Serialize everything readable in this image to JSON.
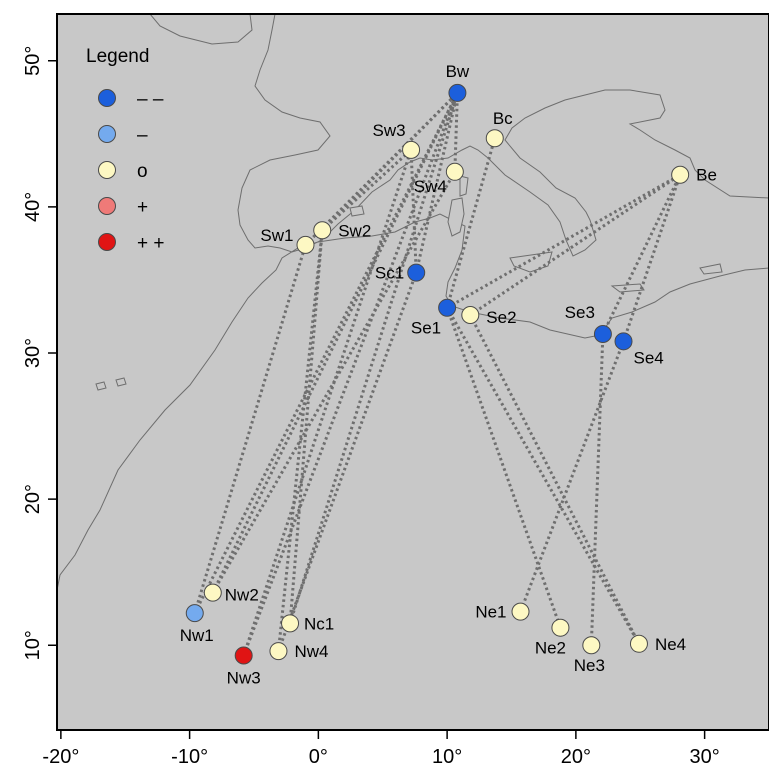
{
  "map": {
    "land_color": "#c8c8c8",
    "sea_color": "#ffffff",
    "coast_color": "#6e6e6e",
    "link_color": "#6f6f6f"
  },
  "axes": {
    "x_ticks": [
      {
        "value": -20,
        "label": "-20°"
      },
      {
        "value": -10,
        "label": "-10°"
      },
      {
        "value": 0,
        "label": "0°"
      },
      {
        "value": 10,
        "label": "10°"
      },
      {
        "value": 20,
        "label": "20°"
      },
      {
        "value": 30,
        "label": "30°"
      }
    ],
    "y_ticks": [
      {
        "value": 10,
        "label": "10°"
      },
      {
        "value": 20,
        "label": "20°"
      },
      {
        "value": 30,
        "label": "30°"
      },
      {
        "value": 40,
        "label": "40°"
      },
      {
        "value": 50,
        "label": "50°"
      }
    ],
    "x_range": [
      -20.3,
      35
    ],
    "y_range": [
      4.2,
      53.2
    ]
  },
  "legend": {
    "title": "Legend",
    "items": [
      {
        "label": "– –",
        "color": "#1c5fdc"
      },
      {
        "label": "–",
        "color": "#74aaee"
      },
      {
        "label": "o",
        "color": "#fdf8c3"
      },
      {
        "label": "+",
        "color": "#ef7a78"
      },
      {
        "label": "+ +",
        "color": "#e01414"
      }
    ]
  },
  "sites": [
    {
      "id": "Bw",
      "lon": 10.8,
      "lat": 47.8,
      "color": "#1c5fdc"
    },
    {
      "id": "Bc",
      "lon": 13.7,
      "lat": 44.7,
      "color": "#fdf8c3"
    },
    {
      "id": "Be",
      "lon": 28.1,
      "lat": 42.2,
      "color": "#fdf8c3"
    },
    {
      "id": "Sw3",
      "lon": 7.2,
      "lat": 43.9,
      "color": "#fdf8c3"
    },
    {
      "id": "Sw4",
      "lon": 10.6,
      "lat": 42.4,
      "color": "#fdf8c3"
    },
    {
      "id": "Sw1",
      "lon": -1.0,
      "lat": 37.4,
      "color": "#fdf8c3"
    },
    {
      "id": "Sw2",
      "lon": 0.3,
      "lat": 38.4,
      "color": "#fdf8c3"
    },
    {
      "id": "Sc1",
      "lon": 7.6,
      "lat": 35.5,
      "color": "#1c5fdc"
    },
    {
      "id": "Se1",
      "lon": 10.0,
      "lat": 33.1,
      "color": "#1c5fdc"
    },
    {
      "id": "Se2",
      "lon": 11.8,
      "lat": 32.6,
      "color": "#fdf8c3"
    },
    {
      "id": "Se3",
      "lon": 22.1,
      "lat": 31.3,
      "color": "#1c5fdc"
    },
    {
      "id": "Se4",
      "lon": 23.7,
      "lat": 30.8,
      "color": "#1c5fdc"
    },
    {
      "id": "Nw1",
      "lon": -9.6,
      "lat": 12.2,
      "color": "#74aaee"
    },
    {
      "id": "Nw2",
      "lon": -8.2,
      "lat": 13.6,
      "color": "#fdf8c3"
    },
    {
      "id": "Nw3",
      "lon": -5.8,
      "lat": 9.3,
      "color": "#e01414"
    },
    {
      "id": "Nw4",
      "lon": -3.1,
      "lat": 9.6,
      "color": "#fdf8c3"
    },
    {
      "id": "Nc1",
      "lon": -2.2,
      "lat": 11.5,
      "color": "#fdf8c3"
    },
    {
      "id": "Ne1",
      "lon": 15.7,
      "lat": 12.3,
      "color": "#fdf8c3"
    },
    {
      "id": "Ne2",
      "lon": 18.8,
      "lat": 11.2,
      "color": "#fdf8c3"
    },
    {
      "id": "Ne3",
      "lon": 21.2,
      "lat": 10.0,
      "color": "#fdf8c3"
    },
    {
      "id": "Ne4",
      "lon": 24.9,
      "lat": 10.1,
      "color": "#fdf8c3"
    }
  ],
  "links": [
    [
      "Nw1",
      "Sw1"
    ],
    [
      "Nw1",
      "Bw"
    ],
    [
      "Nw2",
      "Bw"
    ],
    [
      "Nw2",
      "Sw4"
    ],
    [
      "Nw3",
      "Sw3"
    ],
    [
      "Nw3",
      "Bw"
    ],
    [
      "Nw4",
      "Sw2"
    ],
    [
      "Nw4",
      "Sc1"
    ],
    [
      "Nc1",
      "Bw"
    ],
    [
      "Nc1",
      "Sw2"
    ],
    [
      "Sw1",
      "Bw"
    ],
    [
      "Sw2",
      "Bw"
    ],
    [
      "Sw2",
      "Sw3"
    ],
    [
      "Sc1",
      "Bw"
    ],
    [
      "Sc1",
      "Sw3"
    ],
    [
      "Se1",
      "Bc"
    ],
    [
      "Se1",
      "Be"
    ],
    [
      "Se2",
      "Be"
    ],
    [
      "Se1",
      "Ne2"
    ],
    [
      "Se1",
      "Ne4"
    ],
    [
      "Se2",
      "Ne4"
    ],
    [
      "Se3",
      "Be"
    ],
    [
      "Se4",
      "Be"
    ],
    [
      "Se3",
      "Ne3"
    ],
    [
      "Se4",
      "Ne1"
    ],
    [
      "Sw4",
      "Bw"
    ]
  ]
}
